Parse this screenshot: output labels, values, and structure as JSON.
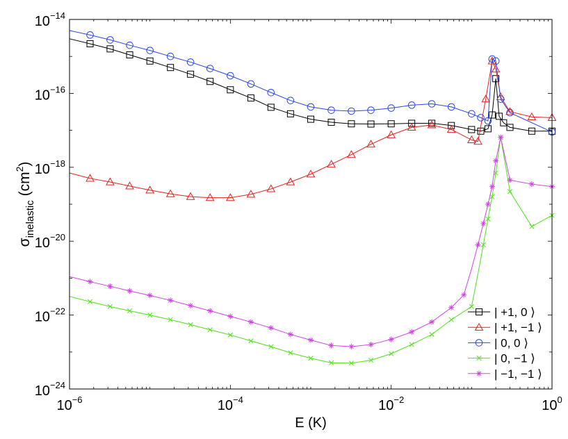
{
  "chart_data": {
    "type": "line",
    "title": "",
    "xlabel": "E (K)",
    "ylabel_main": "σ",
    "ylabel_sub": "inelastic",
    "ylabel_unit_open": " (cm",
    "ylabel_unit_exp": "2",
    "ylabel_unit_close": ")",
    "xscale": "log",
    "yscale": "log",
    "xlim": [
      1e-06,
      1
    ],
    "ylim": [
      1e-24,
      1e-14
    ],
    "grid": false,
    "legend_position": "bottom-right",
    "x_ticks": [
      {
        "value": 1e-06,
        "base": "10",
        "exp": "−6"
      },
      {
        "value": 0.0001,
        "base": "10",
        "exp": "−4"
      },
      {
        "value": 0.01,
        "base": "10",
        "exp": "−2"
      },
      {
        "value": 1,
        "base": "10",
        "exp": "0"
      }
    ],
    "y_ticks": [
      {
        "value": 1e-24,
        "base": "10",
        "exp": "−24"
      },
      {
        "value": 1e-22,
        "base": "10",
        "exp": "−22"
      },
      {
        "value": 1e-20,
        "base": "10",
        "exp": "−20"
      },
      {
        "value": 1e-18,
        "base": "10",
        "exp": "−18"
      },
      {
        "value": 1e-16,
        "base": "10",
        "exp": "−16"
      },
      {
        "value": 1e-14,
        "base": "10",
        "exp": "−14"
      }
    ],
    "series": [
      {
        "name": "| +1, 0 ⟩",
        "color": "#000000",
        "marker": "square",
        "x": [
          1e-06,
          1.8e-06,
          3.2e-06,
          5.6e-06,
          1e-05,
          1.8e-05,
          3.2e-05,
          5.6e-05,
          0.0001,
          0.00018,
          0.00032,
          0.00056,
          0.001,
          0.0018,
          0.0032,
          0.0056,
          0.01,
          0.018,
          0.032,
          0.056,
          0.1,
          0.13,
          0.16,
          0.18,
          0.2,
          0.22,
          0.25,
          0.3,
          0.56,
          1.0
        ],
        "y": [
          3e-15,
          2.2e-15,
          1.6e-15,
          1.1e-15,
          7.5e-16,
          5e-16,
          3.3e-16,
          2.1e-16,
          1.25e-16,
          7.5e-17,
          4.2e-17,
          2.8e-17,
          2e-17,
          1.65e-17,
          1.5e-17,
          1.48e-17,
          1.5e-17,
          1.55e-17,
          1.55e-17,
          1.35e-17,
          1.05e-17,
          9.5e-18,
          1.1e-17,
          2.6e-17,
          2.5e-16,
          2.4e-17,
          1.6e-17,
          1.2e-17,
          9.5e-18,
          9.5e-18
        ],
        "marker_indices": [
          1,
          2,
          3,
          4,
          5,
          6,
          7,
          8,
          9,
          10,
          11,
          12,
          13,
          14,
          15,
          16,
          17,
          18,
          19,
          20,
          21,
          22,
          23,
          24,
          25,
          26,
          27,
          28,
          29
        ]
      },
      {
        "name": "| +1, −1 ⟩",
        "color": "#e8201c",
        "marker": "triangle",
        "x": [
          1e-06,
          1.8e-06,
          3.2e-06,
          5.6e-06,
          1e-05,
          1.8e-05,
          3.2e-05,
          5.6e-05,
          0.0001,
          0.00018,
          0.00032,
          0.00056,
          0.001,
          0.0018,
          0.0032,
          0.0056,
          0.01,
          0.018,
          0.032,
          0.056,
          0.1,
          0.12,
          0.15,
          0.18,
          0.2,
          0.23,
          0.3,
          0.56,
          1.0
        ],
        "y": [
          7e-19,
          5e-19,
          4e-19,
          3.1e-19,
          2.4e-19,
          1.9e-19,
          1.6e-19,
          1.5e-19,
          1.5e-19,
          1.85e-19,
          2.6e-19,
          4e-19,
          6.5e-19,
          1.2e-18,
          2.2e-18,
          4.2e-18,
          7.5e-18,
          1.2e-17,
          1.4e-17,
          1.05e-17,
          5.5e-18,
          5e-18,
          7e-17,
          7.5e-16,
          4.5e-16,
          8e-17,
          3.2e-17,
          2.3e-17,
          2.2e-17
        ],
        "marker_indices": [
          1,
          2,
          3,
          4,
          5,
          6,
          7,
          8,
          9,
          10,
          11,
          12,
          13,
          14,
          15,
          16,
          17,
          18,
          19,
          20,
          21,
          22,
          23,
          24,
          25,
          26,
          27,
          28
        ]
      },
      {
        "name": "| 0, 0 ⟩",
        "color": "#2845e6",
        "marker": "circle",
        "x": [
          1e-06,
          1.8e-06,
          3.2e-06,
          5.6e-06,
          1e-05,
          1.8e-05,
          3.2e-05,
          5.6e-05,
          0.0001,
          0.00018,
          0.00032,
          0.00056,
          0.001,
          0.0018,
          0.0032,
          0.0056,
          0.01,
          0.018,
          0.032,
          0.056,
          0.1,
          0.13,
          0.16,
          0.18,
          0.2,
          0.23,
          0.3,
          1.0
        ],
        "y": [
          5e-15,
          3.8e-15,
          2.8e-15,
          2e-15,
          1.45e-15,
          1e-15,
          7e-16,
          4.7e-16,
          3e-16,
          1.8e-16,
          1.05e-16,
          6.4e-17,
          4.3e-17,
          3.5e-17,
          3.3e-17,
          3.5e-17,
          4e-17,
          4.8e-17,
          5.2e-17,
          4.3e-17,
          2.8e-17,
          2.2e-17,
          1.8e-17,
          8.5e-16,
          7.5e-16,
          7e-17,
          3e-17,
          9e-18
        ],
        "marker_indices": [
          1,
          2,
          3,
          4,
          5,
          6,
          7,
          8,
          9,
          10,
          11,
          12,
          13,
          14,
          15,
          16,
          17,
          18,
          19,
          20,
          21,
          22,
          23,
          24,
          25,
          26,
          27
        ]
      },
      {
        "name": "| 0, −1 ⟩",
        "color": "#4ee21a",
        "marker": "x",
        "x": [
          1e-06,
          1.8e-06,
          3.2e-06,
          5.6e-06,
          1e-05,
          1.8e-05,
          3.2e-05,
          5.6e-05,
          0.0001,
          0.00018,
          0.00032,
          0.00056,
          0.001,
          0.0018,
          0.0032,
          0.0056,
          0.01,
          0.018,
          0.032,
          0.056,
          0.1,
          0.12,
          0.14,
          0.16,
          0.18,
          0.2,
          0.23,
          0.3,
          0.56,
          1.0
        ],
        "y": [
          3.2e-22,
          2.3e-22,
          1.7e-22,
          1.3e-22,
          1e-22,
          7.5e-23,
          5.5e-23,
          4e-23,
          2.9e-23,
          2e-23,
          1.4e-23,
          9.5e-24,
          6.8e-24,
          5.1e-24,
          5e-24,
          6e-24,
          9e-24,
          1.6e-23,
          3e-23,
          7.5e-23,
          1.7e-22,
          1.3e-21,
          8e-21,
          4e-20,
          1.6e-19,
          7e-19,
          6.5e-18,
          2.2e-19,
          2.5e-20,
          5e-20
        ],
        "marker_indices": [
          1,
          2,
          3,
          4,
          5,
          6,
          7,
          8,
          9,
          10,
          11,
          12,
          13,
          14,
          15,
          16,
          17,
          18,
          19,
          20,
          22,
          23,
          24,
          25,
          26,
          27,
          28,
          29
        ]
      },
      {
        "name": "| −1, −1 ⟩",
        "color": "#d340e8",
        "marker": "asterisk",
        "x": [
          1e-06,
          1.8e-06,
          3.2e-06,
          5.6e-06,
          1e-05,
          1.8e-05,
          3.2e-05,
          5.6e-05,
          0.0001,
          0.00018,
          0.00032,
          0.00056,
          0.001,
          0.0018,
          0.0032,
          0.0056,
          0.01,
          0.018,
          0.032,
          0.056,
          0.08,
          0.1,
          0.12,
          0.14,
          0.16,
          0.18,
          0.2,
          0.23,
          0.3,
          0.56,
          1.0
        ],
        "y": [
          1.1e-21,
          8e-22,
          6e-22,
          4.5e-22,
          3.4e-22,
          2.5e-22,
          1.8e-22,
          1.3e-22,
          9.2e-23,
          6.5e-23,
          4.5e-23,
          3e-23,
          2.1e-23,
          1.5e-23,
          1.4e-23,
          1.6e-23,
          2.2e-23,
          3.5e-23,
          6.5e-23,
          1.6e-22,
          3.5e-22,
          1.8e-21,
          8e-21,
          3e-20,
          1e-19,
          3e-19,
          1.5e-18,
          6.5e-18,
          4.5e-19,
          3.5e-19,
          3e-19
        ],
        "marker_indices": [
          1,
          2,
          3,
          4,
          5,
          6,
          7,
          8,
          9,
          10,
          11,
          12,
          13,
          14,
          15,
          16,
          17,
          18,
          19,
          20,
          22,
          23,
          24,
          25,
          26,
          27,
          28,
          29,
          30
        ]
      }
    ]
  }
}
